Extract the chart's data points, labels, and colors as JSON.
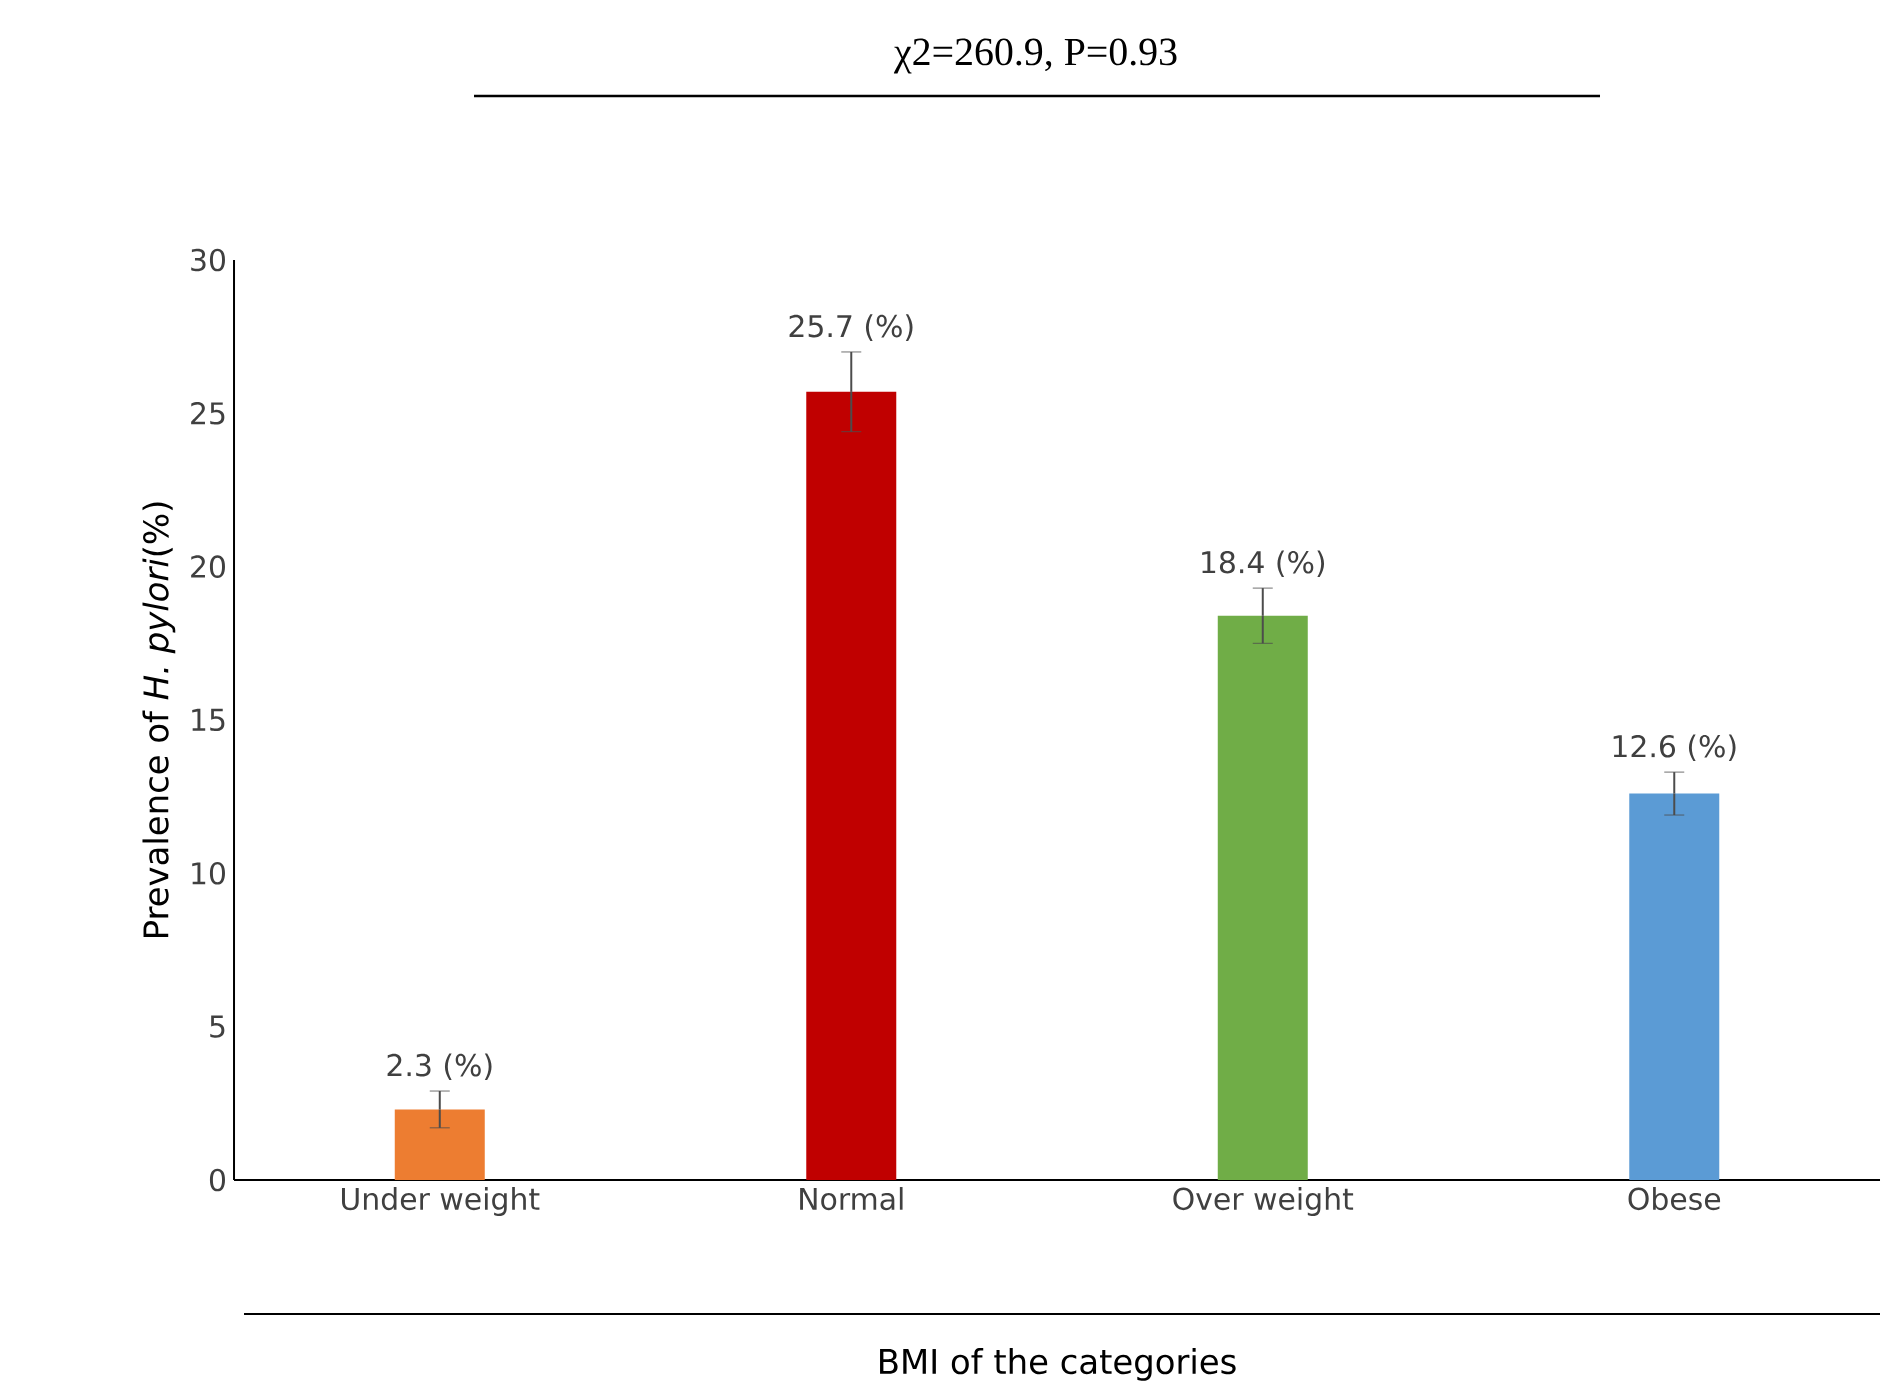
{
  "chart_data": {
    "type": "bar",
    "title": "χ2=260.9, P=0.93",
    "xlabel": "BMI of the categories",
    "ylabel": "Prevalence of *H. pylori*(%)",
    "categories": [
      "Under weight",
      "Normal",
      "Over weight",
      "Obese"
    ],
    "values": [
      2.3,
      25.7,
      18.4,
      12.6
    ],
    "colors": [
      "#ed7d31",
      "#c00000",
      "#70ad47",
      "#5b9bd5"
    ],
    "errors": [
      0.6,
      1.3,
      0.9,
      0.7
    ],
    "value_labels": [
      "2.3 (%)",
      "25.7 (%)",
      "18.4 (%)",
      "12.6 (%)"
    ],
    "ylim": [
      0,
      30
    ],
    "yticks": [
      0,
      5,
      10,
      15,
      20,
      25,
      30
    ],
    "grid": false
  }
}
